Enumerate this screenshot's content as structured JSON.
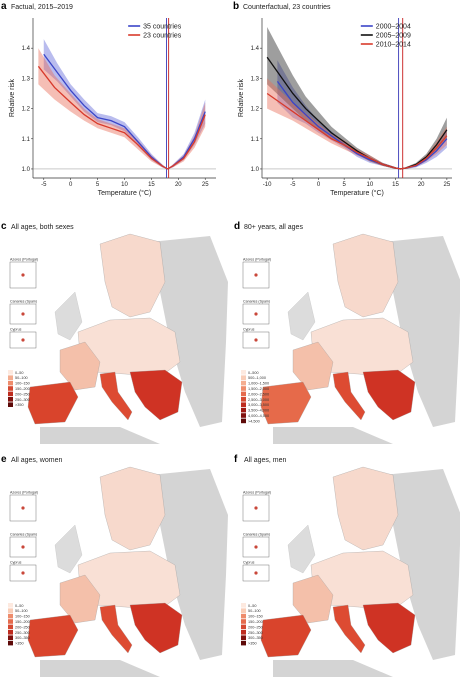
{
  "panels": {
    "a": {
      "letter": "a",
      "title": "Factual, 2015–2019"
    },
    "b": {
      "letter": "b",
      "title": "Counterfactual, 23 countries"
    },
    "c": {
      "letter": "c",
      "title": "All ages, both sexes",
      "legend": [
        "0–50",
        "50–100",
        "100–150",
        "150–200",
        "200–250",
        "250–300",
        ">350"
      ]
    },
    "d": {
      "letter": "d",
      "title": "80+ years, all ages",
      "legend": [
        "0–500",
        "500–1,000",
        "1,000–1,500",
        "1,500–2,000",
        "2,000–2,500",
        "2,500–3,000",
        "3,000–3,500",
        "3,500–4,000",
        "4,000–4,500",
        ">4,500"
      ]
    },
    "e": {
      "letter": "e",
      "title": "All ages, women",
      "legend": [
        "0–50",
        "50–100",
        "100–150",
        "150–200",
        "200–250",
        "250–300",
        "300–350",
        ">350"
      ]
    },
    "f": {
      "letter": "f",
      "title": "All ages, men",
      "legend": [
        "0–50",
        "50–100",
        "100–150",
        "150–200",
        "200–250",
        "250–300",
        "300–350",
        ">350"
      ]
    }
  },
  "insets": {
    "azores": "Azores (Portugal)",
    "canaries": "Canaries (Spain)",
    "cyprus": "Cyprus"
  },
  "chart_data": [
    {
      "type": "line",
      "title": "Factual, 2015–2019",
      "xlabel": "Temperature (°C)",
      "ylabel": "Relative risk",
      "xlim": [
        -7,
        27
      ],
      "ylim": [
        0.97,
        1.5
      ],
      "xticks": [
        -5,
        0,
        5,
        10,
        15,
        20,
        25
      ],
      "yticks": [
        1.0,
        1.1,
        1.2,
        1.3,
        1.4
      ],
      "legend_position": "top-right",
      "vlines": [
        {
          "x": 17.8,
          "color": "#3a3ab8"
        },
        {
          "x": 18.2,
          "color": "#c81e1e"
        }
      ],
      "series": [
        {
          "name": "35 countries",
          "color": "#3a45c8",
          "x": [
            -5,
            -2.5,
            0,
            2.5,
            5,
            7.5,
            10,
            12.5,
            15,
            17,
            18,
            19,
            21,
            23,
            25
          ],
          "y": [
            1.38,
            1.32,
            1.26,
            1.21,
            1.17,
            1.16,
            1.14,
            1.09,
            1.04,
            1.01,
            1.0,
            1.01,
            1.04,
            1.1,
            1.19
          ],
          "lower": [
            1.33,
            1.29,
            1.24,
            1.19,
            1.155,
            1.145,
            1.125,
            1.075,
            1.03,
            1.005,
            1.0,
            1.005,
            1.03,
            1.08,
            1.15
          ],
          "upper": [
            1.43,
            1.35,
            1.28,
            1.23,
            1.185,
            1.175,
            1.155,
            1.105,
            1.05,
            1.015,
            1.0,
            1.015,
            1.05,
            1.12,
            1.23
          ]
        },
        {
          "name": "23 countries",
          "color": "#d83a2c",
          "x": [
            -6,
            -3,
            0,
            2.5,
            5,
            7.5,
            10,
            12.5,
            15,
            17,
            18,
            19,
            21,
            23,
            25
          ],
          "y": [
            1.34,
            1.27,
            1.22,
            1.18,
            1.15,
            1.135,
            1.12,
            1.08,
            1.035,
            1.01,
            1.0,
            1.01,
            1.035,
            1.09,
            1.18
          ],
          "lower": [
            1.28,
            1.23,
            1.19,
            1.16,
            1.135,
            1.12,
            1.105,
            1.065,
            1.025,
            1.005,
            1.0,
            1.005,
            1.025,
            1.07,
            1.14
          ],
          "upper": [
            1.4,
            1.31,
            1.25,
            1.2,
            1.165,
            1.15,
            1.135,
            1.095,
            1.045,
            1.015,
            1.0,
            1.015,
            1.045,
            1.11,
            1.22
          ]
        }
      ]
    },
    {
      "type": "line",
      "title": "Counterfactual, 23 countries",
      "xlabel": "Temperature (°C)",
      "ylabel": "Relative risk",
      "xlim": [
        -11,
        26
      ],
      "ylim": [
        0.97,
        1.5
      ],
      "xticks": [
        -10,
        -5,
        0,
        5,
        10,
        15,
        20,
        25
      ],
      "yticks": [
        1.0,
        1.1,
        1.2,
        1.3,
        1.4
      ],
      "legend_position": "top-right",
      "vlines": [
        {
          "x": 15.6,
          "color": "#3a3ab8"
        },
        {
          "x": 16.4,
          "color": "#c81e1e"
        }
      ],
      "series": [
        {
          "name": "2000–2004",
          "color": "#3a45c8",
          "x": [
            -8,
            -5,
            -2.5,
            0,
            2.5,
            5,
            7.5,
            10,
            12.5,
            15,
            16,
            17,
            19,
            21,
            23,
            25
          ],
          "y": [
            1.29,
            1.22,
            1.18,
            1.14,
            1.11,
            1.08,
            1.05,
            1.03,
            1.015,
            1.003,
            1.0,
            1.003,
            1.01,
            1.03,
            1.06,
            1.1
          ],
          "lower": [
            1.22,
            1.17,
            1.15,
            1.12,
            1.095,
            1.07,
            1.04,
            1.02,
            1.01,
            1.0,
            1.0,
            1.0,
            1.005,
            1.02,
            1.04,
            1.07
          ],
          "upper": [
            1.36,
            1.27,
            1.21,
            1.16,
            1.125,
            1.09,
            1.06,
            1.04,
            1.02,
            1.006,
            1.0,
            1.006,
            1.015,
            1.04,
            1.08,
            1.13
          ]
        },
        {
          "name": "2005–2009",
          "color": "#111111",
          "x": [
            -10,
            -7.5,
            -5,
            -2.5,
            0,
            2.5,
            5,
            7.5,
            10,
            12.5,
            15,
            16,
            17,
            19,
            21,
            23,
            25
          ],
          "y": [
            1.37,
            1.31,
            1.25,
            1.2,
            1.16,
            1.12,
            1.09,
            1.06,
            1.035,
            1.015,
            1.003,
            1.0,
            1.003,
            1.015,
            1.04,
            1.08,
            1.13
          ],
          "lower": [
            1.28,
            1.24,
            1.2,
            1.16,
            1.13,
            1.1,
            1.075,
            1.05,
            1.025,
            1.01,
            1.0,
            1.0,
            1.0,
            1.01,
            1.03,
            1.06,
            1.1
          ],
          "upper": [
            1.47,
            1.39,
            1.31,
            1.24,
            1.19,
            1.14,
            1.105,
            1.07,
            1.045,
            1.02,
            1.006,
            1.0,
            1.006,
            1.02,
            1.05,
            1.1,
            1.17
          ]
        },
        {
          "name": "2010–2014",
          "color": "#d83a2c",
          "x": [
            -10,
            -7.5,
            -5,
            -2.5,
            0,
            2.5,
            5,
            7.5,
            10,
            12.5,
            15,
            16,
            17,
            19,
            21,
            23,
            25
          ],
          "y": [
            1.25,
            1.22,
            1.19,
            1.16,
            1.13,
            1.1,
            1.08,
            1.055,
            1.035,
            1.015,
            1.003,
            1.0,
            1.003,
            1.012,
            1.035,
            1.07,
            1.11
          ],
          "lower": [
            1.2,
            1.18,
            1.16,
            1.135,
            1.11,
            1.085,
            1.065,
            1.045,
            1.025,
            1.01,
            1.0,
            1.0,
            1.0,
            1.007,
            1.025,
            1.05,
            1.08
          ],
          "upper": [
            1.3,
            1.26,
            1.22,
            1.185,
            1.15,
            1.115,
            1.095,
            1.065,
            1.045,
            1.02,
            1.006,
            1.0,
            1.006,
            1.017,
            1.045,
            1.09,
            1.14
          ]
        }
      ]
    }
  ]
}
